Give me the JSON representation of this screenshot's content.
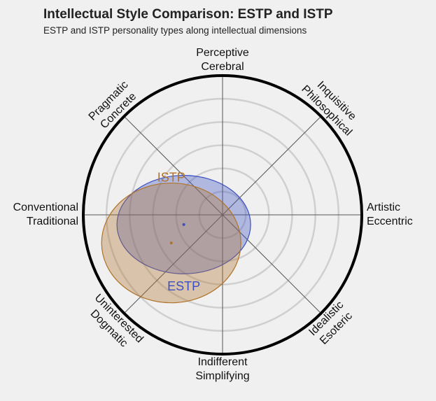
{
  "chart_data": {
    "type": "ellipse",
    "title": "Intellectual Style Comparison: ESTP and ISTP",
    "subtitle": "ESTP and ISTP personality types along intellectual dimensions",
    "axis_labels": [
      [
        "Artistic",
        "Eccentric"
      ],
      [
        "Inquisitive",
        "Philosophical"
      ],
      [
        "Perceptive",
        "Cerebral"
      ],
      [
        "Pragmatic",
        "Concrete"
      ],
      [
        "Conventional",
        "Traditional"
      ],
      [
        "Uninterested",
        "Dogmatic"
      ],
      [
        "Indifferent",
        "Simplifying"
      ],
      [
        "Idealistic",
        "Esoteric"
      ]
    ],
    "rlim": [
      0,
      6
    ],
    "rticks": [
      1,
      2,
      3,
      4,
      5
    ],
    "grid": true,
    "series": [
      {
        "name": "ESTP",
        "color": "#3b4fc4",
        "x": -1.67,
        "y": -0.42,
        "rx": 2.88,
        "ry": 2.12
      },
      {
        "name": "ISTP",
        "color": "#b0732a",
        "x": -2.21,
        "y": -1.21,
        "rx": 3.0,
        "ry": 2.58
      }
    ]
  }
}
